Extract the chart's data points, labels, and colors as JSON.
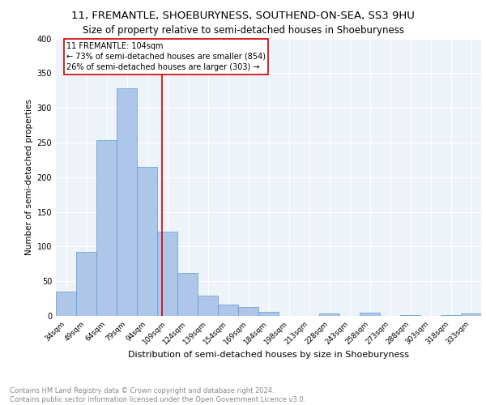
{
  "title1": "11, FREMANTLE, SHOEBURYNESS, SOUTHEND-ON-SEA, SS3 9HU",
  "title2": "Size of property relative to semi-detached houses in Shoeburyness",
  "xlabel": "Distribution of semi-detached houses by size in Shoeburyness",
  "ylabel": "Number of semi-detached properties",
  "footer1": "Contains HM Land Registry data © Crown copyright and database right 2024.",
  "footer2": "Contains public sector information licensed under the Open Government Licence v3.0.",
  "categories": [
    "34sqm",
    "49sqm",
    "64sqm",
    "79sqm",
    "94sqm",
    "109sqm",
    "124sqm",
    "139sqm",
    "154sqm",
    "169sqm",
    "184sqm",
    "198sqm",
    "213sqm",
    "228sqm",
    "243sqm",
    "258sqm",
    "273sqm",
    "288sqm",
    "303sqm",
    "318sqm",
    "333sqm"
  ],
  "values": [
    35,
    92,
    253,
    328,
    215,
    121,
    62,
    29,
    16,
    13,
    6,
    0,
    0,
    4,
    0,
    5,
    0,
    1,
    0,
    1,
    4
  ],
  "bar_color": "#aec6e8",
  "bar_edge_color": "#5b9bd5",
  "annotation_text1": "11 FREMANTLE: 104sqm",
  "annotation_text2": "← 73% of semi-detached houses are smaller (854)",
  "annotation_text3": "26% of semi-detached houses are larger (303) →",
  "annotation_box_color": "#ffffff",
  "annotation_box_edge": "#cc0000",
  "vline_color": "#cc0000",
  "vline_x": 4.73,
  "ylim": [
    0,
    400
  ],
  "yticks": [
    0,
    50,
    100,
    150,
    200,
    250,
    300,
    350,
    400
  ],
  "background_color": "#eef2f9",
  "grid_color": "#ffffff",
  "title1_fontsize": 9.5,
  "title2_fontsize": 8.5,
  "xlabel_fontsize": 8,
  "ylabel_fontsize": 7.5,
  "footer_fontsize": 6,
  "annot_fontsize": 7,
  "xtick_fontsize": 6.5,
  "ytick_fontsize": 7
}
